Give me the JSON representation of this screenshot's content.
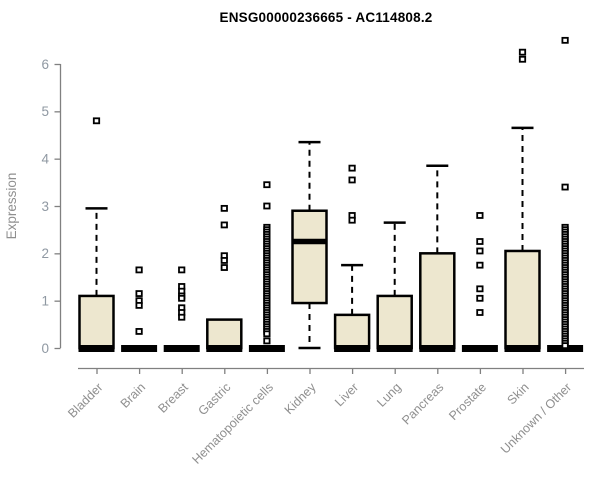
{
  "title": "ENSG00000236665 - AC114808.2",
  "colors": {
    "box_fill": "#EDE7CF",
    "box_border": "#000000",
    "median": "#000000",
    "whisker": "#000000",
    "outlier": "#000000",
    "axis_line": "#808080",
    "tick_label": "#8f98a2",
    "axis_title": "#8f8f8f",
    "title": "#000000",
    "background": "#ffffff"
  },
  "chart_data": {
    "type": "boxplot",
    "title": "ENSG00000236665 - AC114808.2",
    "ylabel": "Expression",
    "xlabel": "",
    "ylim": [
      0,
      6
    ],
    "yticks": [
      0,
      1,
      2,
      3,
      4,
      5,
      6
    ],
    "grid": false,
    "legend": false,
    "categories": [
      "Bladder",
      "Brain",
      "Breast",
      "Gastric",
      "Hematopoietic cells",
      "Kidney",
      "Liver",
      "Lung",
      "Pancreas",
      "Prostate",
      "Skin",
      "Unknown / Other"
    ],
    "series": [
      {
        "label": "Bladder",
        "whislo": 0,
        "q1": 0,
        "med": 0,
        "q3": 1.1,
        "whishi": 2.95,
        "outliers": [
          4.8
        ]
      },
      {
        "label": "Brain",
        "whislo": 0,
        "q1": 0,
        "med": 0,
        "q3": 0,
        "whishi": 0,
        "outliers": [
          1.65,
          1.15,
          1.0,
          0.9,
          0.35
        ]
      },
      {
        "label": "Breast",
        "whislo": 0,
        "q1": 0,
        "med": 0,
        "q3": 0,
        "whishi": 0,
        "outliers": [
          1.65,
          1.3,
          1.2,
          1.1,
          1.05,
          0.85,
          0.75,
          0.65
        ]
      },
      {
        "label": "Gastric",
        "whislo": 0,
        "q1": 0,
        "med": 0,
        "q3": 0.6,
        "whishi": 0.6,
        "outliers": [
          2.95,
          2.6,
          1.95,
          1.85,
          1.7
        ]
      },
      {
        "label": "Hematopoietic cells",
        "whislo": 0,
        "q1": 0,
        "med": 0,
        "q3": 0,
        "whishi": 0,
        "outliers": [
          3.45,
          3.0,
          2.55,
          2.5,
          2.45,
          2.4,
          2.35,
          2.3,
          2.25,
          2.2,
          2.15,
          2.1,
          2.05,
          2.0,
          1.95,
          1.9,
          1.85,
          1.8,
          1.75,
          1.7,
          1.65,
          1.6,
          1.55,
          1.5,
          1.45,
          1.4,
          1.35,
          1.3,
          1.25,
          1.2,
          1.15,
          1.1,
          1.05,
          1.0,
          0.95,
          0.9,
          0.85,
          0.8,
          0.75,
          0.7,
          0.65,
          0.6,
          0.55,
          0.5,
          0.45,
          0.4,
          0.35,
          0.3,
          0.15
        ]
      },
      {
        "label": "Kidney",
        "whislo": 0,
        "q1": 0.95,
        "med": 2.25,
        "q3": 2.9,
        "whishi": 4.35,
        "outliers": []
      },
      {
        "label": "Liver",
        "whislo": 0,
        "q1": 0,
        "med": 0,
        "q3": 0.7,
        "whishi": 1.75,
        "outliers": [
          3.8,
          3.55,
          2.8,
          2.7
        ]
      },
      {
        "label": "Lung",
        "whislo": 0,
        "q1": 0,
        "med": 0,
        "q3": 1.1,
        "whishi": 2.65,
        "outliers": []
      },
      {
        "label": "Pancreas",
        "whislo": 0,
        "q1": 0,
        "med": 0,
        "q3": 2.0,
        "whishi": 3.85,
        "outliers": []
      },
      {
        "label": "Prostate",
        "whislo": 0,
        "q1": 0,
        "med": 0,
        "q3": 0,
        "whishi": 0,
        "outliers": [
          2.8,
          2.25,
          2.05,
          1.75,
          1.25,
          1.05,
          0.75
        ]
      },
      {
        "label": "Skin",
        "whislo": 0,
        "q1": 0,
        "med": 0,
        "q3": 2.05,
        "whishi": 4.65,
        "outliers": [
          6.25,
          6.1
        ]
      },
      {
        "label": "Unknown / Other",
        "whislo": 0,
        "q1": 0,
        "med": 0,
        "q3": 0,
        "whishi": 0,
        "outliers": [
          6.5,
          3.4,
          2.55,
          2.5,
          2.45,
          2.4,
          2.35,
          2.3,
          2.25,
          2.2,
          2.15,
          2.1,
          2.05,
          2.0,
          1.95,
          1.9,
          1.85,
          1.8,
          1.75,
          1.7,
          1.65,
          1.6,
          1.55,
          1.5,
          1.45,
          1.4,
          1.35,
          1.3,
          1.25,
          1.2,
          1.15,
          1.1,
          1.05,
          1.0,
          0.95,
          0.9,
          0.85,
          0.8,
          0.75,
          0.7,
          0.65,
          0.6,
          0.55,
          0.5,
          0.45,
          0.4,
          0.35,
          0.3,
          0.25,
          0.2,
          0.15,
          0.1,
          0.05
        ]
      }
    ]
  }
}
